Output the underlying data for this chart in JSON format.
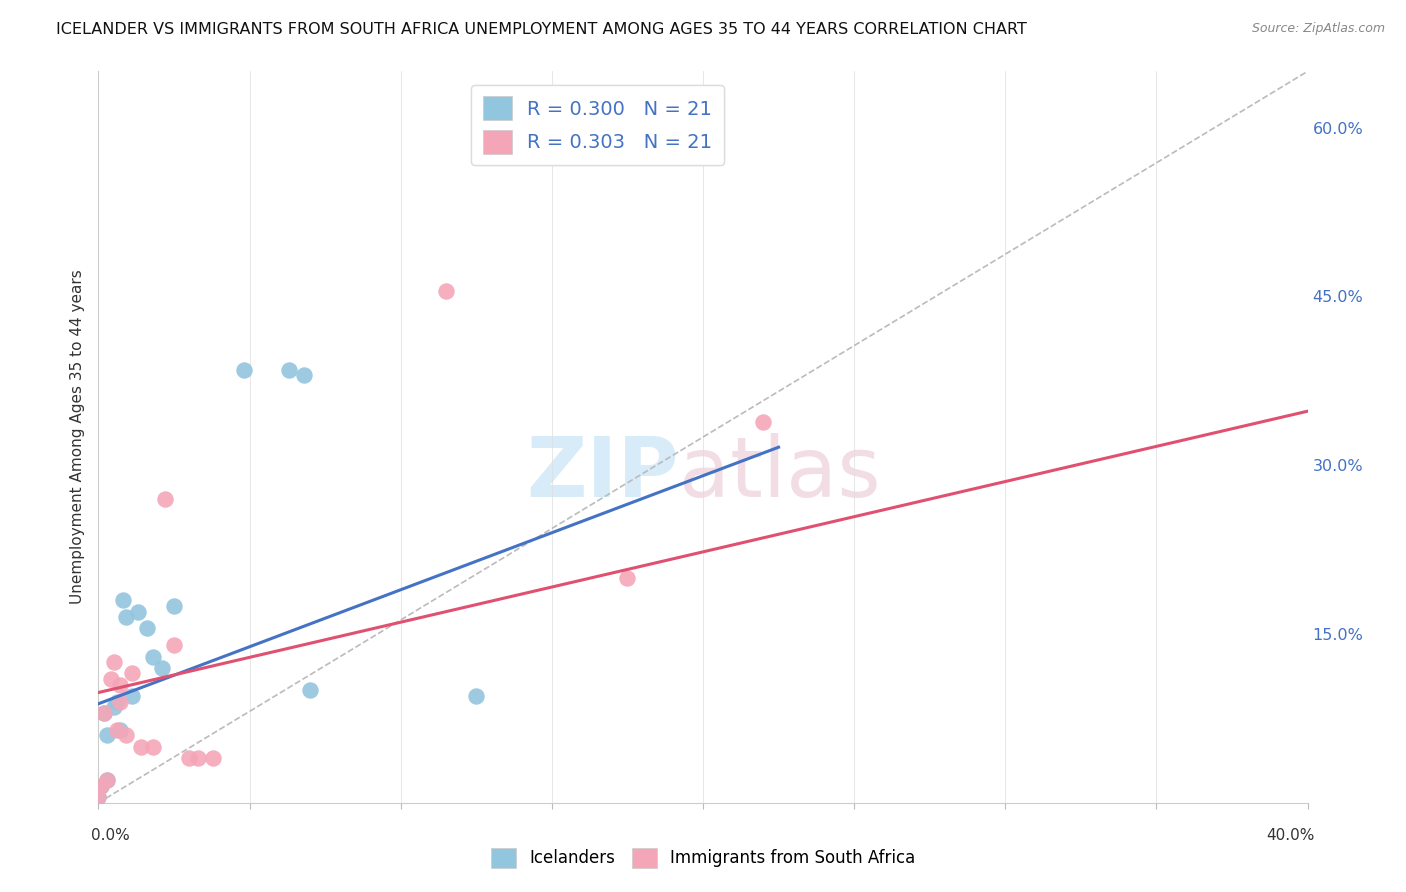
{
  "title": "ICELANDER VS IMMIGRANTS FROM SOUTH AFRICA UNEMPLOYMENT AMONG AGES 35 TO 44 YEARS CORRELATION CHART",
  "source": "Source: ZipAtlas.com",
  "ylabel": "Unemployment Among Ages 35 to 44 years",
  "legend_label1": "Icelanders",
  "legend_label2": "Immigrants from South Africa",
  "r1": 0.3,
  "n1": 21,
  "r2": 0.303,
  "n2": 21,
  "color_blue": "#92C5DE",
  "color_pink": "#F4A6B8",
  "color_text_blue": "#4472C4",
  "icelanders_x": [
    0.0,
    0.001,
    0.002,
    0.003,
    0.003,
    0.005,
    0.006,
    0.007,
    0.008,
    0.009,
    0.011,
    0.013,
    0.016,
    0.018,
    0.021,
    0.025,
    0.048,
    0.063,
    0.068,
    0.07,
    0.125
  ],
  "icelanders_y": [
    0.005,
    0.015,
    0.08,
    0.02,
    0.06,
    0.085,
    0.09,
    0.065,
    0.18,
    0.165,
    0.095,
    0.17,
    0.155,
    0.13,
    0.12,
    0.175,
    0.385,
    0.385,
    0.38,
    0.1,
    0.095
  ],
  "immigrants_x": [
    0.0,
    0.001,
    0.002,
    0.003,
    0.004,
    0.005,
    0.006,
    0.007,
    0.007,
    0.009,
    0.011,
    0.014,
    0.018,
    0.022,
    0.025,
    0.03,
    0.033,
    0.038,
    0.115,
    0.175,
    0.22
  ],
  "immigrants_y": [
    0.005,
    0.015,
    0.08,
    0.02,
    0.11,
    0.125,
    0.065,
    0.09,
    0.105,
    0.06,
    0.115,
    0.05,
    0.05,
    0.27,
    0.14,
    0.04,
    0.04,
    0.04,
    0.455,
    0.2,
    0.338
  ],
  "xlim": [
    0.0,
    0.4
  ],
  "ylim": [
    0.0,
    0.65
  ],
  "blue_line_x": [
    0.0,
    0.225
  ],
  "blue_line_y": [
    0.088,
    0.316
  ],
  "pink_line_x": [
    0.0,
    0.4
  ],
  "pink_line_y": [
    0.098,
    0.348
  ],
  "diag_line_x": [
    0.0,
    0.4
  ],
  "diag_line_y": [
    0.0,
    0.65
  ],
  "right_yticks": [
    0.15,
    0.3,
    0.45,
    0.6
  ],
  "right_yticklabels": [
    "15.0%",
    "30.0%",
    "45.0%",
    "60.0%"
  ],
  "xtick_positions": [
    0.0,
    0.05,
    0.1,
    0.15,
    0.2,
    0.25,
    0.3,
    0.35,
    0.4
  ]
}
